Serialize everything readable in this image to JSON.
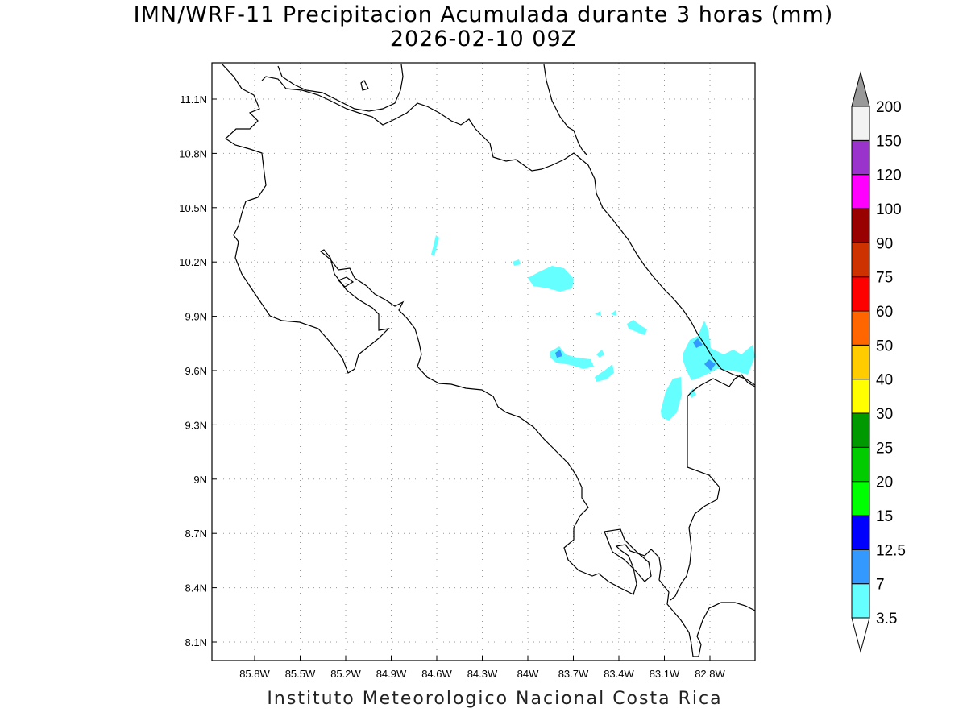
{
  "title": "IMN/WRF-11 Precipitacion Acumulada durante 3 horas (mm)",
  "subtitle": "2026-02-10 09Z",
  "footer": "Instituto Meteorologico Nacional Costa Rica",
  "map": {
    "lon_range": [
      -86.0,
      -82.55
    ],
    "lat_range": [
      8.0,
      11.3
    ],
    "lon_ticks": [
      "85.8W",
      "85.5W",
      "85.2W",
      "84.9W",
      "84.6W",
      "84.3W",
      "84W",
      "83.7W",
      "83.4W",
      "83.1W",
      "82.8W"
    ],
    "lon_tick_values": [
      -85.8,
      -85.5,
      -85.2,
      -84.9,
      -84.6,
      -84.3,
      -84.0,
      -83.7,
      -83.4,
      -83.1,
      -82.8
    ],
    "lat_ticks": [
      "8.1N",
      "8.4N",
      "8.7N",
      "9N",
      "9.3N",
      "9.6N",
      "9.9N",
      "10.2N",
      "10.5N",
      "10.8N",
      "11.1N"
    ],
    "lat_tick_values": [
      8.1,
      8.4,
      8.7,
      9.0,
      9.3,
      9.6,
      9.9,
      10.2,
      10.5,
      10.8,
      11.1
    ],
    "grid": "dotted"
  },
  "colorbar": {
    "labels": [
      "3.5",
      "7",
      "12.5",
      "15",
      "20",
      "25",
      "30",
      "40",
      "50",
      "60",
      "75",
      "90",
      "100",
      "120",
      "150",
      "200"
    ],
    "colors": [
      "#66ffff",
      "#3399ff",
      "#0000ff",
      "#00ff00",
      "#00cc00",
      "#009900",
      "#ffff00",
      "#ffcc00",
      "#ff6600",
      "#ff0000",
      "#cc3300",
      "#990000",
      "#ff00ff",
      "#9933cc",
      "#f2f2f2"
    ],
    "over_color": "#999999",
    "under_color": "#ffffff"
  },
  "precip_areas": [
    {
      "name": "light-rain-north",
      "level": "3.5",
      "color": "#66ffff"
    },
    {
      "name": "light-rain-central",
      "level": "3.5",
      "color": "#66ffff"
    },
    {
      "name": "light-rain-caribbean",
      "level": "3.5",
      "color": "#66ffff"
    },
    {
      "name": "moderate-rain-limon",
      "level": "7",
      "color": "#3399ff"
    }
  ]
}
